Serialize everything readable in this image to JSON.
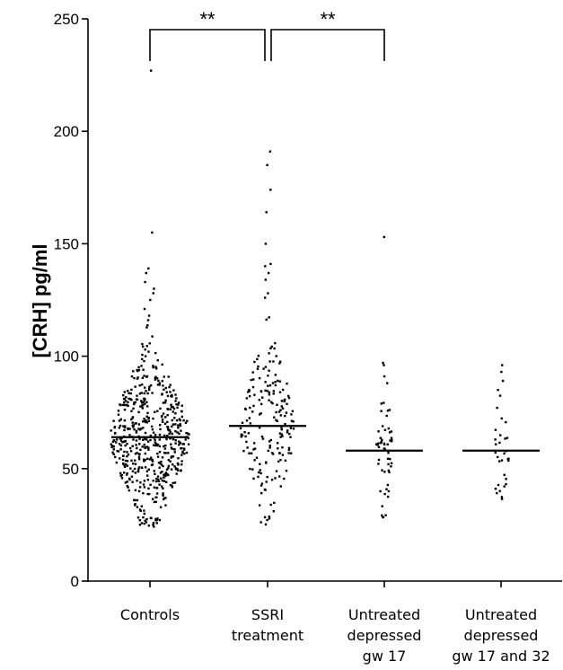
{
  "chart_data": {
    "type": "scatter",
    "subtype": "dot-plot with median lines",
    "title": "",
    "ylabel": "[CRH] pg/ml",
    "xlabel": "",
    "ylim": [
      0,
      250
    ],
    "yticks": [
      0,
      50,
      100,
      150,
      200,
      250
    ],
    "grid": false,
    "categories": [
      {
        "label_lines": [
          "Controls"
        ],
        "median": 64,
        "spread": "wide",
        "approx_n": 560,
        "range": [
          24,
          227
        ],
        "notable_high_values": [
          227,
          155,
          139,
          137,
          133,
          130,
          128,
          125,
          121,
          118,
          116
        ]
      },
      {
        "label_lines": [
          "SSRI",
          "treatment"
        ],
        "median": 69,
        "spread": "medium",
        "approx_n": 190,
        "range": [
          24,
          191
        ],
        "notable_high_values": [
          191,
          185,
          174,
          164,
          150,
          141,
          140,
          137,
          134,
          128,
          126
        ]
      },
      {
        "label_lines": [
          "Untreated",
          "depressed",
          "gw 17"
        ],
        "median": 58,
        "spread": "narrow",
        "approx_n": 58,
        "range": [
          28,
          153
        ],
        "notable_high_values": [
          153,
          97,
          96,
          91,
          88
        ]
      },
      {
        "label_lines": [
          "Untreated",
          "depressed",
          "gw 17 and 32"
        ],
        "median": 58,
        "spread": "narrow",
        "approx_n": 34,
        "range": [
          36,
          96
        ],
        "notable_high_values": [
          96,
          93,
          89,
          85
        ]
      }
    ],
    "significance": [
      {
        "from": 0,
        "to": 1,
        "label": "**"
      },
      {
        "from": 1,
        "to": 2,
        "label": "**"
      }
    ]
  }
}
